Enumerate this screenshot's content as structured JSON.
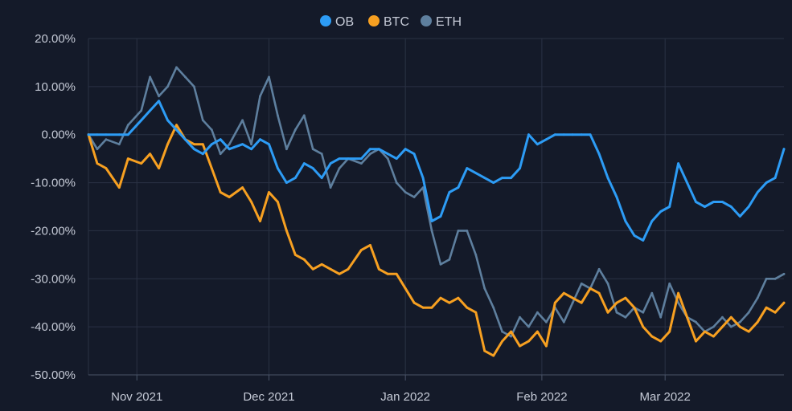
{
  "chart_data": {
    "type": "line",
    "title": "",
    "xlabel": "",
    "ylabel": "",
    "ylim": [
      -50,
      20
    ],
    "y_ticks": [
      20,
      10,
      0,
      -10,
      -20,
      -30,
      -40,
      -50
    ],
    "y_tick_labels": [
      "20.00%",
      "10.00%",
      "0.00%",
      "-10.00%",
      "-20.00%",
      "-30.00%",
      "-40.00%",
      "-50.00%"
    ],
    "x_range": [
      "2021-10-21",
      "2022-03-28"
    ],
    "x_ticks": [
      "2021-11-01",
      "2021-12-01",
      "2022-01-01",
      "2022-02-01",
      "2022-03-01"
    ],
    "x_tick_labels": [
      "Nov 2021",
      "Dec 2021",
      "Jan 2022",
      "Feb 2022",
      "Mar 2022"
    ],
    "grid": true,
    "legend_position": "top-center",
    "series": [
      {
        "name": "ETH",
        "color": "#5e7f9e",
        "x": [
          "2021-10-21",
          "2021-10-23",
          "2021-10-25",
          "2021-10-28",
          "2021-10-30",
          "2021-11-02",
          "2021-11-04",
          "2021-11-06",
          "2021-11-08",
          "2021-11-10",
          "2021-11-12",
          "2021-11-14",
          "2021-11-16",
          "2021-11-18",
          "2021-11-20",
          "2021-11-22",
          "2021-11-25",
          "2021-11-27",
          "2021-11-29",
          "2021-12-01",
          "2021-12-03",
          "2021-12-05",
          "2021-12-07",
          "2021-12-09",
          "2021-12-11",
          "2021-12-13",
          "2021-12-15",
          "2021-12-17",
          "2021-12-19",
          "2021-12-22",
          "2021-12-24",
          "2021-12-26",
          "2021-12-28",
          "2021-12-30",
          "2022-01-01",
          "2022-01-03",
          "2022-01-05",
          "2022-01-07",
          "2022-01-09",
          "2022-01-11",
          "2022-01-13",
          "2022-01-15",
          "2022-01-17",
          "2022-01-19",
          "2022-01-21",
          "2022-01-23",
          "2022-01-25",
          "2022-01-27",
          "2022-01-29",
          "2022-01-31",
          "2022-02-02",
          "2022-02-04",
          "2022-02-06",
          "2022-02-08",
          "2022-02-10",
          "2022-02-12",
          "2022-02-14",
          "2022-02-16",
          "2022-02-18",
          "2022-02-20",
          "2022-02-22",
          "2022-02-24",
          "2022-02-26",
          "2022-02-28",
          "2022-03-02",
          "2022-03-04",
          "2022-03-06",
          "2022-03-08",
          "2022-03-10",
          "2022-03-12",
          "2022-03-14",
          "2022-03-16",
          "2022-03-18",
          "2022-03-20",
          "2022-03-22",
          "2022-03-24",
          "2022-03-26",
          "2022-03-28"
        ],
        "values": [
          0,
          -3,
          -1,
          -2,
          2,
          5,
          12,
          8,
          10,
          14,
          12,
          10,
          3,
          1,
          -4,
          -2,
          3,
          -2,
          8,
          12,
          4,
          -3,
          1,
          4,
          -3,
          -4,
          -11,
          -7,
          -5,
          -6,
          -4,
          -3,
          -5,
          -10,
          -12,
          -13,
          -11,
          -20,
          -27,
          -26,
          -20,
          -20,
          -25,
          -32,
          -36,
          -41,
          -42,
          -38,
          -40,
          -37,
          -39,
          -36,
          -39,
          -35,
          -31,
          -32,
          -28,
          -31,
          -37,
          -38,
          -36,
          -37,
          -33,
          -38,
          -31,
          -35,
          -38,
          -39,
          -41,
          -40,
          -38,
          -40,
          -39,
          -37,
          -34,
          -30,
          -30,
          -29
        ]
      },
      {
        "name": "BTC",
        "color": "#f7a021",
        "x": [
          "2021-10-21",
          "2021-10-23",
          "2021-10-25",
          "2021-10-28",
          "2021-10-30",
          "2021-11-02",
          "2021-11-04",
          "2021-11-06",
          "2021-11-08",
          "2021-11-10",
          "2021-11-12",
          "2021-11-14",
          "2021-11-16",
          "2021-11-18",
          "2021-11-20",
          "2021-11-22",
          "2021-11-25",
          "2021-11-27",
          "2021-11-29",
          "2021-12-01",
          "2021-12-03",
          "2021-12-05",
          "2021-12-07",
          "2021-12-09",
          "2021-12-11",
          "2021-12-13",
          "2021-12-15",
          "2021-12-17",
          "2021-12-19",
          "2021-12-22",
          "2021-12-24",
          "2021-12-26",
          "2021-12-28",
          "2021-12-30",
          "2022-01-01",
          "2022-01-03",
          "2022-01-05",
          "2022-01-07",
          "2022-01-09",
          "2022-01-11",
          "2022-01-13",
          "2022-01-15",
          "2022-01-17",
          "2022-01-19",
          "2022-01-21",
          "2022-01-23",
          "2022-01-25",
          "2022-01-27",
          "2022-01-29",
          "2022-01-31",
          "2022-02-02",
          "2022-02-04",
          "2022-02-06",
          "2022-02-08",
          "2022-02-10",
          "2022-02-12",
          "2022-02-14",
          "2022-02-16",
          "2022-02-18",
          "2022-02-20",
          "2022-02-22",
          "2022-02-24",
          "2022-02-26",
          "2022-02-28",
          "2022-03-02",
          "2022-03-04",
          "2022-03-06",
          "2022-03-08",
          "2022-03-10",
          "2022-03-12",
          "2022-03-14",
          "2022-03-16",
          "2022-03-18",
          "2022-03-20",
          "2022-03-22",
          "2022-03-24",
          "2022-03-26",
          "2022-03-28"
        ],
        "values": [
          0,
          -6,
          -7,
          -11,
          -5,
          -6,
          -4,
          -7,
          -2,
          2,
          -1,
          -2,
          -2,
          -7,
          -12,
          -13,
          -11,
          -14,
          -18,
          -12,
          -14,
          -20,
          -25,
          -26,
          -28,
          -27,
          -28,
          -29,
          -28,
          -24,
          -23,
          -28,
          -29,
          -29,
          -32,
          -35,
          -36,
          -36,
          -34,
          -35,
          -34,
          -36,
          -37,
          -45,
          -46,
          -43,
          -41,
          -44,
          -43,
          -41,
          -44,
          -35,
          -33,
          -34,
          -35,
          -32,
          -33,
          -37,
          -35,
          -34,
          -36,
          -40,
          -42,
          -43,
          -41,
          -33,
          -38,
          -43,
          -41,
          -42,
          -40,
          -38,
          -40,
          -41,
          -39,
          -36,
          -37,
          -35
        ]
      },
      {
        "name": "OB",
        "color": "#2d9cf5",
        "x": [
          "2021-10-21",
          "2021-10-23",
          "2021-10-25",
          "2021-10-28",
          "2021-10-30",
          "2021-11-02",
          "2021-11-04",
          "2021-11-06",
          "2021-11-08",
          "2021-11-10",
          "2021-11-12",
          "2021-11-14",
          "2021-11-16",
          "2021-11-18",
          "2021-11-20",
          "2021-11-22",
          "2021-11-25",
          "2021-11-27",
          "2021-11-29",
          "2021-12-01",
          "2021-12-03",
          "2021-12-05",
          "2021-12-07",
          "2021-12-09",
          "2021-12-11",
          "2021-12-13",
          "2021-12-15",
          "2021-12-17",
          "2021-12-19",
          "2021-12-22",
          "2021-12-24",
          "2021-12-26",
          "2021-12-28",
          "2021-12-30",
          "2022-01-01",
          "2022-01-03",
          "2022-01-05",
          "2022-01-07",
          "2022-01-09",
          "2022-01-11",
          "2022-01-13",
          "2022-01-15",
          "2022-01-17",
          "2022-01-19",
          "2022-01-21",
          "2022-01-23",
          "2022-01-25",
          "2022-01-27",
          "2022-01-29",
          "2022-01-31",
          "2022-02-02",
          "2022-02-04",
          "2022-02-06",
          "2022-02-08",
          "2022-02-10",
          "2022-02-12",
          "2022-02-14",
          "2022-02-16",
          "2022-02-18",
          "2022-02-20",
          "2022-02-22",
          "2022-02-24",
          "2022-02-26",
          "2022-02-28",
          "2022-03-02",
          "2022-03-04",
          "2022-03-06",
          "2022-03-08",
          "2022-03-10",
          "2022-03-12",
          "2022-03-14",
          "2022-03-16",
          "2022-03-18",
          "2022-03-20",
          "2022-03-22",
          "2022-03-24",
          "2022-03-26",
          "2022-03-28"
        ],
        "values": [
          0,
          0,
          0,
          0,
          0,
          3,
          5,
          7,
          3,
          1,
          -1,
          -3,
          -4,
          -2,
          -1,
          -3,
          -2,
          -3,
          -1,
          -2,
          -7,
          -10,
          -9,
          -6,
          -7,
          -9,
          -6,
          -5,
          -5,
          -5,
          -3,
          -3,
          -4,
          -5,
          -3,
          -4,
          -9,
          -18,
          -17,
          -12,
          -11,
          -7,
          -8,
          -9,
          -10,
          -9,
          -9,
          -7,
          0,
          -2,
          -1,
          0,
          0,
          0,
          0,
          0,
          -4,
          -9,
          -13,
          -18,
          -21,
          -22,
          -18,
          -16,
          -15,
          -6,
          -10,
          -14,
          -15,
          -14,
          -14,
          -15,
          -17,
          -15,
          -12,
          -10,
          -9,
          -3
        ]
      }
    ]
  },
  "legend": [
    {
      "label": "OB",
      "color": "#2d9cf5"
    },
    {
      "label": "BTC",
      "color": "#f7a021"
    },
    {
      "label": "ETH",
      "color": "#5e7f9e"
    }
  ]
}
